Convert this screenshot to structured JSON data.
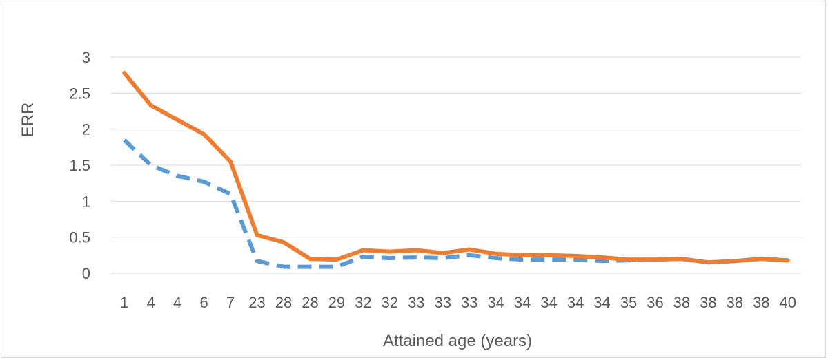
{
  "chart_data": {
    "type": "line",
    "title": "",
    "xlabel": "Attained age (years)",
    "ylabel": "ERR",
    "ylim": [
      0,
      3
    ],
    "yticks": [
      "0",
      "0.5",
      "1",
      "1.5",
      "2",
      "2.5",
      "3"
    ],
    "grid": true,
    "categories": [
      "1",
      "4",
      "4",
      "6",
      "7",
      "23",
      "28",
      "28",
      "29",
      "32",
      "32",
      "33",
      "33",
      "33",
      "34",
      "34",
      "34",
      "34",
      "34",
      "35",
      "36",
      "38",
      "38",
      "38",
      "38",
      "40"
    ],
    "series": [
      {
        "color": "#ed7d31",
        "style": "solid",
        "values": [
          2.78,
          2.33,
          2.13,
          1.93,
          1.55,
          0.53,
          0.43,
          0.2,
          0.19,
          0.32,
          0.3,
          0.32,
          0.28,
          0.33,
          0.27,
          0.25,
          0.25,
          0.24,
          0.22,
          0.19,
          0.19,
          0.2,
          0.15,
          0.17,
          0.2,
          0.18
        ]
      },
      {
        "color": "#5b9bd5",
        "style": "dashed",
        "values": [
          1.85,
          1.5,
          1.35,
          1.27,
          1.1,
          0.17,
          0.09,
          0.09,
          0.09,
          0.23,
          0.21,
          0.22,
          0.21,
          0.25,
          0.21,
          0.19,
          0.19,
          0.19,
          0.17,
          0.18,
          0.19,
          0.2,
          0.15,
          0.17,
          0.2,
          0.18
        ]
      }
    ]
  }
}
